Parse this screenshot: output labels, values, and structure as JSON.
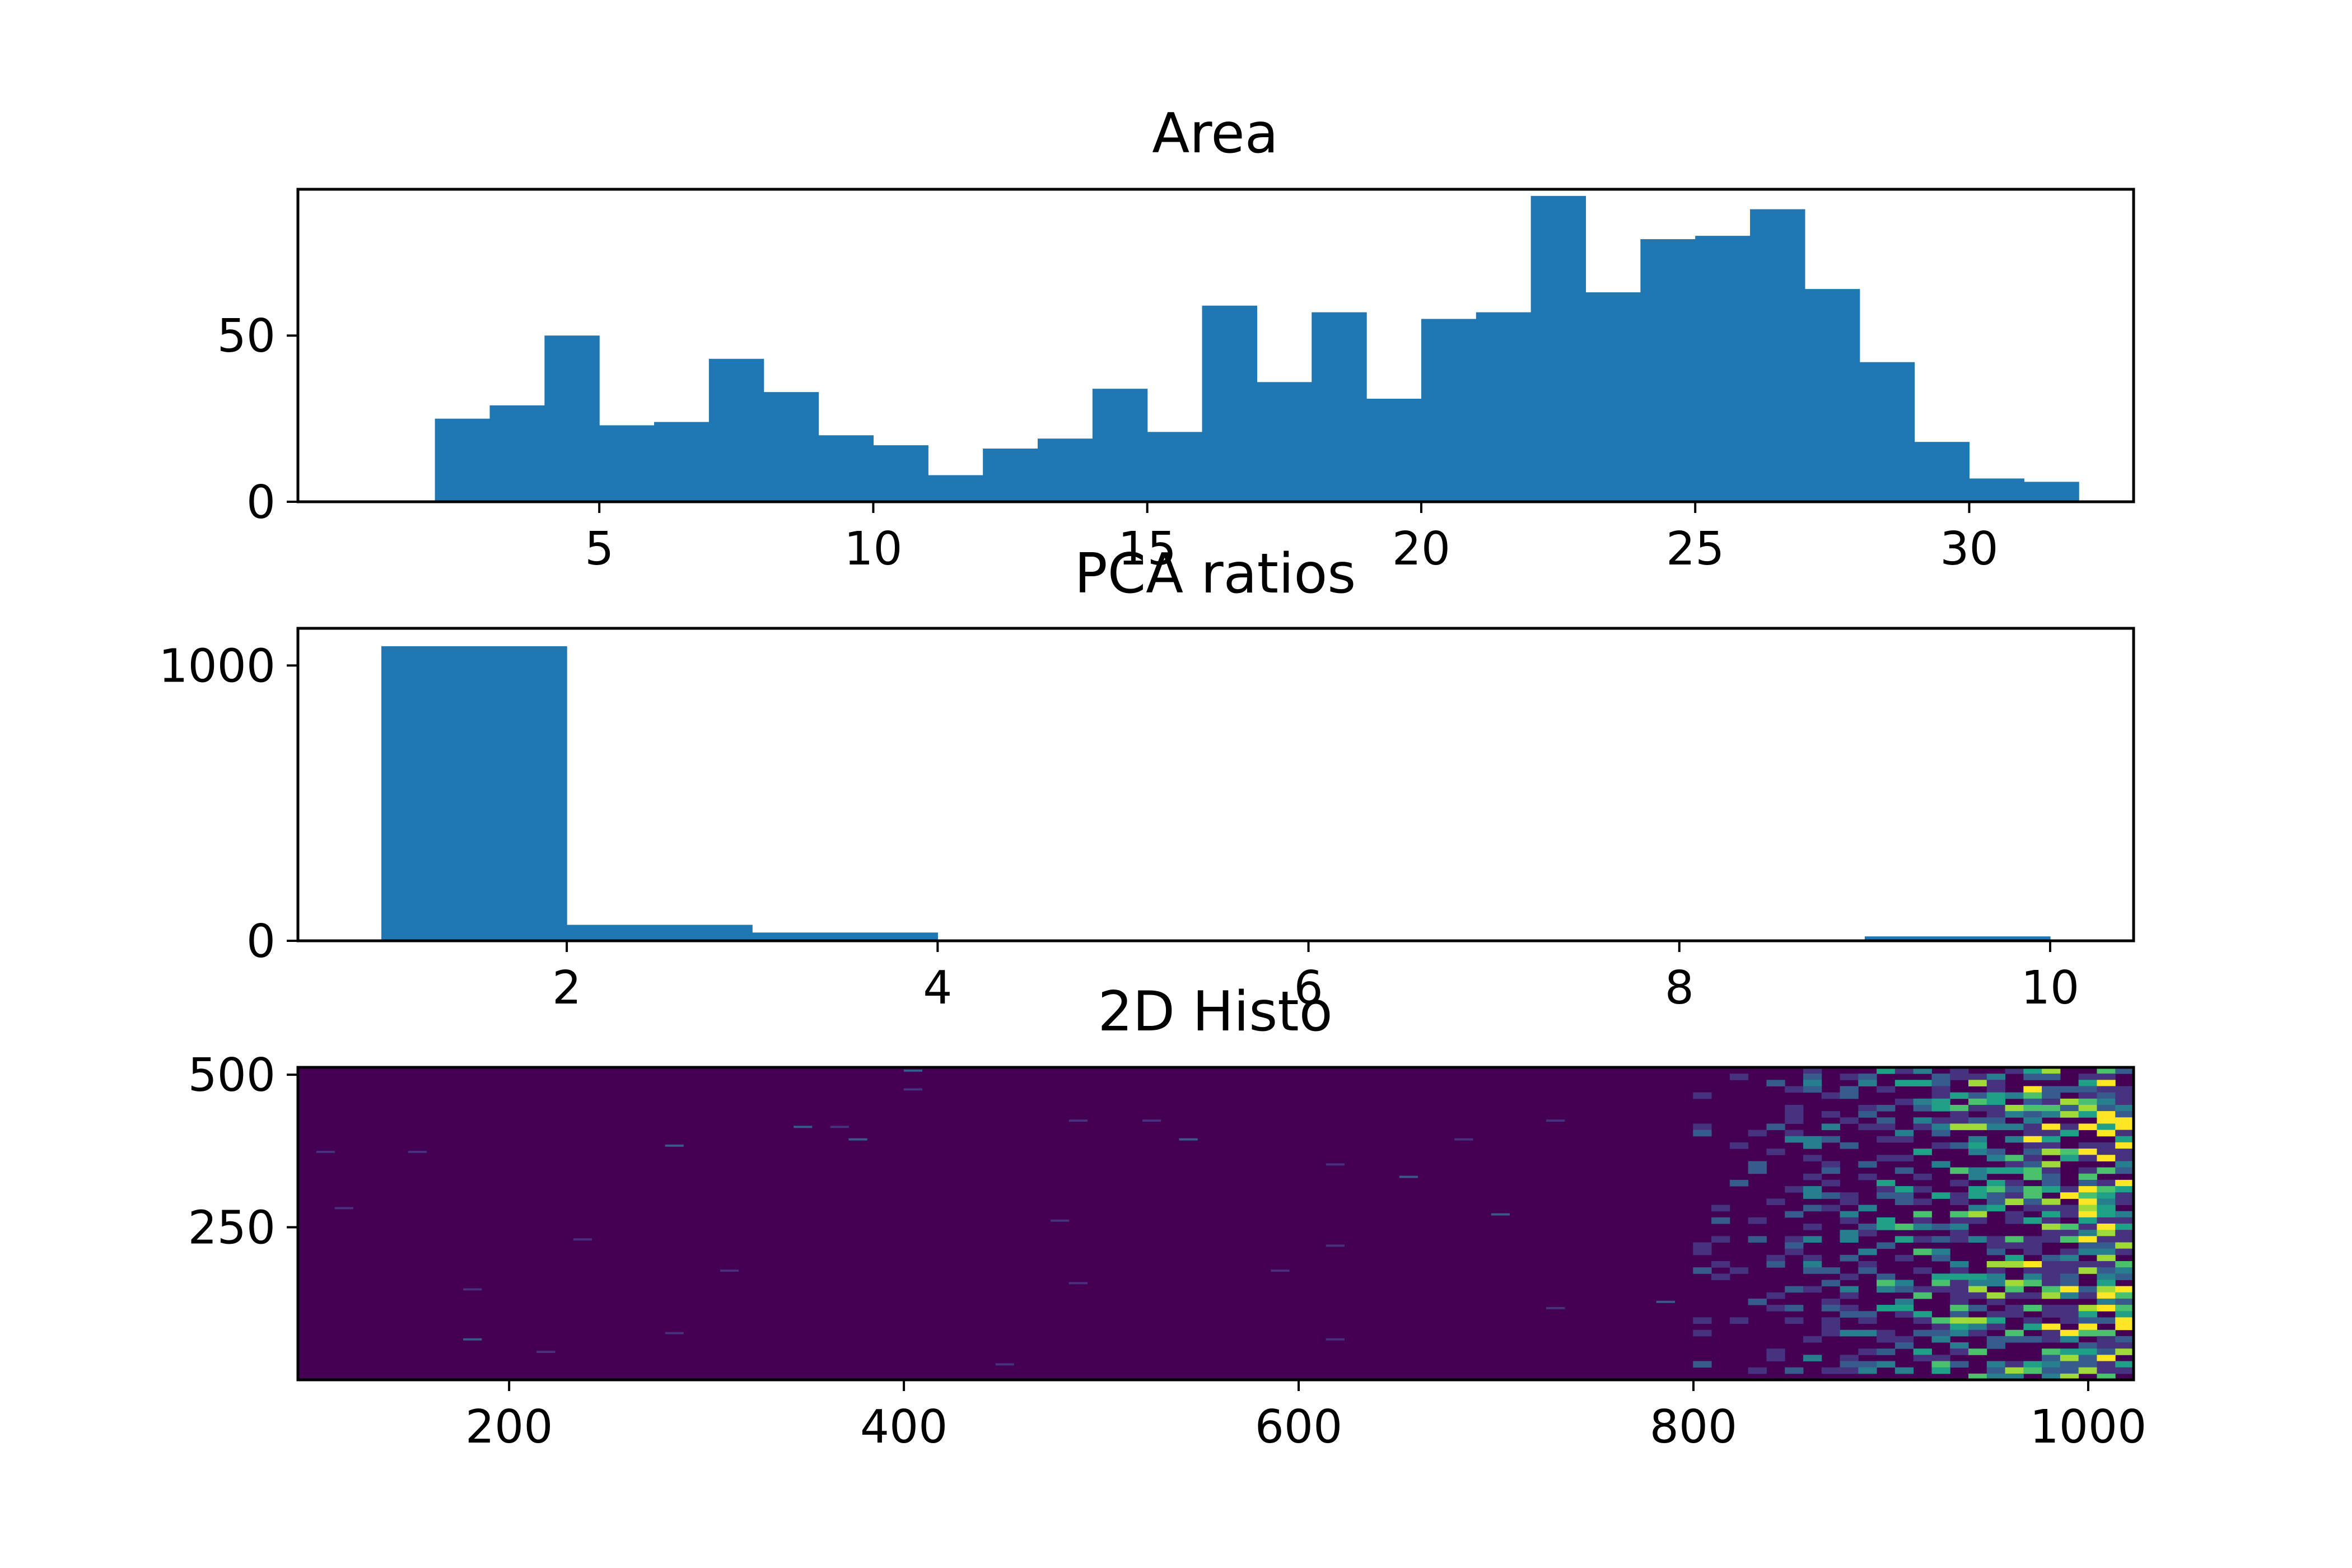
{
  "colors": {
    "bar": "#1f77b4",
    "heat_bg": "#440154",
    "heat_scale": [
      "#440154",
      "#46327e",
      "#365c8d",
      "#277f8e",
      "#1fa187",
      "#4ac16d",
      "#a0da39",
      "#fde725"
    ]
  },
  "chart_data": [
    {
      "type": "bar",
      "subtype": "histogram",
      "title": "Area",
      "bin_edges": [
        2,
        3,
        4,
        5,
        6,
        7,
        8,
        9,
        10,
        11,
        12,
        13,
        14,
        15,
        16,
        17,
        18,
        19,
        20,
        21,
        22,
        23,
        24,
        25,
        26,
        27,
        28,
        29,
        30,
        31,
        32
      ],
      "values": [
        25,
        29,
        50,
        23,
        24,
        43,
        33,
        20,
        17,
        8,
        16,
        19,
        34,
        21,
        59,
        36,
        57,
        31,
        55,
        57,
        92,
        63,
        79,
        80,
        88,
        64,
        42,
        18,
        7,
        6
      ],
      "xlim": [
        -0.5,
        33
      ],
      "ylim": [
        0,
        94
      ],
      "xticks": [
        5,
        10,
        15,
        20,
        25,
        30
      ],
      "xtick_labels": [
        "5",
        "10",
        "15",
        "20",
        "25",
        "30"
      ],
      "yticks": [
        0,
        50
      ],
      "ytick_labels": [
        "0",
        "50"
      ],
      "xlabel": "",
      "ylabel": ""
    },
    {
      "type": "bar",
      "subtype": "histogram",
      "title": "PCA ratios",
      "bin_edges": [
        1,
        2,
        3,
        4,
        5,
        6,
        7,
        8,
        9,
        10
      ],
      "values": [
        1070,
        58,
        30,
        0,
        0,
        0,
        0,
        0,
        16
      ],
      "xlim": [
        0.55,
        10.45
      ],
      "ylim": [
        0,
        1135
      ],
      "xticks": [
        2,
        4,
        6,
        8,
        10
      ],
      "xtick_labels": [
        "2",
        "4",
        "6",
        "8",
        "10"
      ],
      "yticks": [
        0,
        1000
      ],
      "ytick_labels": [
        "0",
        "1000"
      ],
      "xlabel": "",
      "ylabel": ""
    },
    {
      "type": "heatmap",
      "subtype": "hist2d",
      "title": "2D Histo",
      "xlim": [
        93,
        1023
      ],
      "ylim": [
        0,
        512
      ],
      "bins": [
        100,
        50
      ],
      "xticks": [
        200,
        400,
        600,
        800,
        1000
      ],
      "xtick_labels": [
        "200",
        "400",
        "600",
        "800",
        "1000"
      ],
      "yticks": [
        250,
        500
      ],
      "ytick_labels": [
        "250",
        "500"
      ],
      "cmap": "viridis",
      "density_profile": "near zero below x=800, increasing steeply toward x=1023",
      "xlabel": "",
      "ylabel": ""
    }
  ]
}
